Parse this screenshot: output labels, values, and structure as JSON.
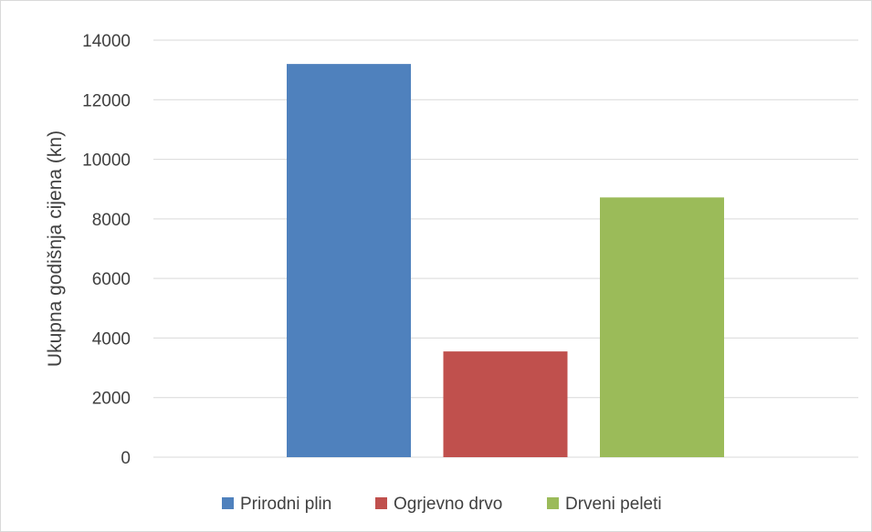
{
  "chart_data": {
    "type": "bar",
    "categories": [
      "Prirodni plin",
      "Ogrjevno drvo",
      "Drveni peleti"
    ],
    "values": [
      13200,
      3550,
      8720
    ],
    "colors": [
      "#4f81bd",
      "#c0504d",
      "#9bbb59"
    ],
    "title": "",
    "xlabel": "",
    "ylabel": "Ukupna godišnja cijena (kn)",
    "ylim": [
      0,
      14000
    ],
    "yticks": [
      "0",
      "2000",
      "4000",
      "6000",
      "8000",
      "10000",
      "12000",
      "14000"
    ],
    "grid": true,
    "legend": {
      "position": "bottom",
      "entries": [
        "Prirodni plin",
        "Ogrjevno drvo",
        "Drveni peleti"
      ]
    }
  }
}
